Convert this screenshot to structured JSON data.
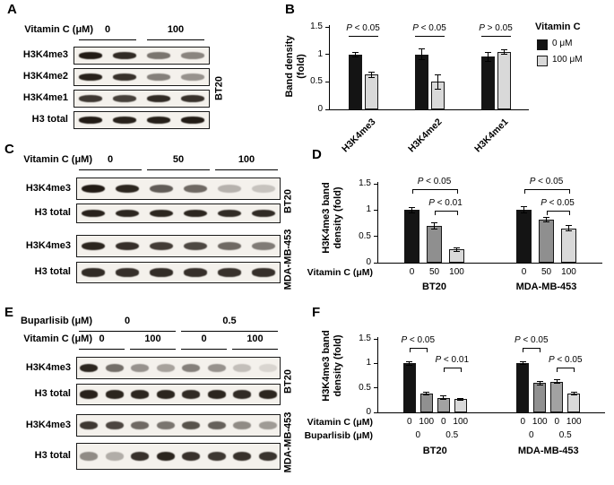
{
  "panels": {
    "A": {
      "label": "A",
      "treatment_label": "Vitamin C (μM)",
      "doses": [
        "0",
        "100"
      ],
      "cell_line": "BT20",
      "rows": [
        {
          "label": "H3K4me3",
          "bands": [
            0.95,
            0.88,
            0.55,
            0.48
          ]
        },
        {
          "label": "H3K4me2",
          "bands": [
            0.92,
            0.85,
            0.5,
            0.42
          ]
        },
        {
          "label": "H3K4me1",
          "bands": [
            0.82,
            0.78,
            0.88,
            0.85
          ]
        },
        {
          "label": "H3 total",
          "bands": [
            0.95,
            0.92,
            0.93,
            0.95
          ]
        }
      ]
    },
    "C": {
      "label": "C",
      "treatment_label": "Vitamin C (μM)",
      "doses": [
        "0",
        "50",
        "100"
      ],
      "blocks": [
        {
          "cell_line": "BT20",
          "rows": [
            {
              "label": "H3K4me3",
              "bands": [
                0.95,
                0.9,
                0.66,
                0.6,
                0.28,
                0.2
              ]
            },
            {
              "label": "H3 total",
              "bands": [
                0.92,
                0.9,
                0.9,
                0.9,
                0.88,
                0.88
              ]
            }
          ]
        },
        {
          "cell_line": "MDA-MB-453",
          "rows": [
            {
              "label": "H3K4me3",
              "bands": [
                0.9,
                0.86,
                0.8,
                0.75,
                0.6,
                0.52
              ]
            },
            {
              "label": "H3 total",
              "bands": [
                0.88,
                0.86,
                0.87,
                0.86,
                0.85,
                0.86
              ]
            }
          ]
        }
      ]
    },
    "E": {
      "label": "E",
      "treatment_rows": [
        {
          "label": "Buparlisib (μM)",
          "doses": [
            "0",
            "0.5"
          ]
        },
        {
          "label": "Vitamin C (μM)",
          "doses": [
            "0",
            "100",
            "0",
            "100"
          ]
        }
      ],
      "blocks": [
        {
          "cell_line": "BT20",
          "rows": [
            {
              "label": "H3K4me3",
              "bands": [
                0.9,
                0.58,
                0.42,
                0.35,
                0.5,
                0.42,
                0.22,
                0.12
              ]
            },
            {
              "label": "H3 total",
              "bands": [
                0.92,
                0.9,
                0.9,
                0.9,
                0.88,
                0.9,
                0.88,
                0.9
              ]
            }
          ]
        },
        {
          "cell_line": "MDA-MB-453",
          "rows": [
            {
              "label": "H3K4me3",
              "bands": [
                0.82,
                0.76,
                0.6,
                0.55,
                0.7,
                0.64,
                0.45,
                0.38
              ]
            },
            {
              "label": "H3 total",
              "bands": [
                0.45,
                0.3,
                0.85,
                0.9,
                0.85,
                0.82,
                0.85,
                0.84
              ]
            }
          ]
        }
      ]
    }
  },
  "chart_data": [
    {
      "id": "B",
      "panel_label": "B",
      "type": "bar",
      "ylabel": "Band density (fold)",
      "ylim": [
        0,
        1.5
      ],
      "yticks": [
        0,
        0.5,
        1,
        1.5
      ],
      "grid": false,
      "legend_position": "right",
      "legend_title": "Vitamin C",
      "categories": [
        "H3K4me3",
        "H3K4me2",
        "H3K4me1"
      ],
      "series": [
        {
          "name": "0 μM",
          "color": "#141414",
          "values": [
            1.0,
            1.0,
            0.96
          ],
          "errors": [
            0.04,
            0.1,
            0.08
          ]
        },
        {
          "name": "100 μM",
          "color": "#d9d9d9",
          "values": [
            0.63,
            0.5,
            1.05
          ],
          "errors": [
            0.05,
            0.13,
            0.04
          ]
        }
      ],
      "annotations": [
        "P < 0.05",
        "P < 0.05",
        "P > 0.05"
      ]
    },
    {
      "id": "D",
      "panel_label": "D",
      "type": "bar",
      "ylabel": "H3K4me3 band density (fold)",
      "ylim": [
        0,
        1.5
      ],
      "yticks": [
        0,
        0.5,
        1,
        1.5
      ],
      "grid": false,
      "x_axis_label": "Vitamin C (μM)",
      "bar_colors": [
        "#141414",
        "#8f8f8f",
        "#d9d9d9"
      ],
      "groups": [
        {
          "name": "BT20",
          "ticks": [
            "0",
            "50",
            "100"
          ],
          "values": [
            1.0,
            0.7,
            0.25
          ],
          "errors": [
            0.05,
            0.06,
            0.03
          ],
          "brackets": [
            {
              "label": "P < 0.05",
              "from": 0,
              "to": 2,
              "level": 1
            },
            {
              "label": "P < 0.01",
              "from": 1,
              "to": 2,
              "level": 0
            }
          ]
        },
        {
          "name": "MDA-MB-453",
          "ticks": [
            "0",
            "50",
            "100"
          ],
          "values": [
            1.0,
            0.82,
            0.65
          ],
          "errors": [
            0.06,
            0.04,
            0.05
          ],
          "brackets": [
            {
              "label": "P < 0.05",
              "from": 0,
              "to": 2,
              "level": 1
            },
            {
              "label": "P < 0.05",
              "from": 1,
              "to": 2,
              "level": 0
            }
          ]
        }
      ]
    },
    {
      "id": "F",
      "panel_label": "F",
      "type": "bar",
      "ylabel": "H3K4me3 band density (fold)",
      "ylim": [
        0,
        1.5
      ],
      "yticks": [
        0,
        0.5,
        1,
        1.5
      ],
      "grid": false,
      "x_axis_label": "Vitamin C (μM)",
      "x_axis_label2": "Buparlisib (μM)",
      "bar_colors": [
        "#141414",
        "#909090",
        "#a2a2a2",
        "#d9d9d9"
      ],
      "groups": [
        {
          "name": "BT20",
          "ticks": [
            "0",
            "100",
            "0",
            "100"
          ],
          "pair_ticks": [
            "0",
            "0.5"
          ],
          "values": [
            1.0,
            0.38,
            0.3,
            0.27
          ],
          "errors": [
            0.04,
            0.03,
            0.03,
            0.02
          ],
          "brackets": [
            {
              "label": "P < 0.05",
              "from": 0,
              "to": 1,
              "level": 1
            },
            {
              "label": "P < 0.01",
              "from": 2,
              "to": 3,
              "level": 0
            }
          ]
        },
        {
          "name": "MDA-MB-453",
          "ticks": [
            "0",
            "100",
            "0",
            "100"
          ],
          "pair_ticks": [
            "0",
            "0.5"
          ],
          "values": [
            1.0,
            0.6,
            0.63,
            0.38
          ],
          "errors": [
            0.03,
            0.04,
            0.03,
            0.03
          ],
          "brackets": [
            {
              "label": "P < 0.05",
              "from": 0,
              "to": 1,
              "level": 1
            },
            {
              "label": "P < 0.05",
              "from": 2,
              "to": 3,
              "level": 0
            }
          ]
        }
      ]
    }
  ]
}
